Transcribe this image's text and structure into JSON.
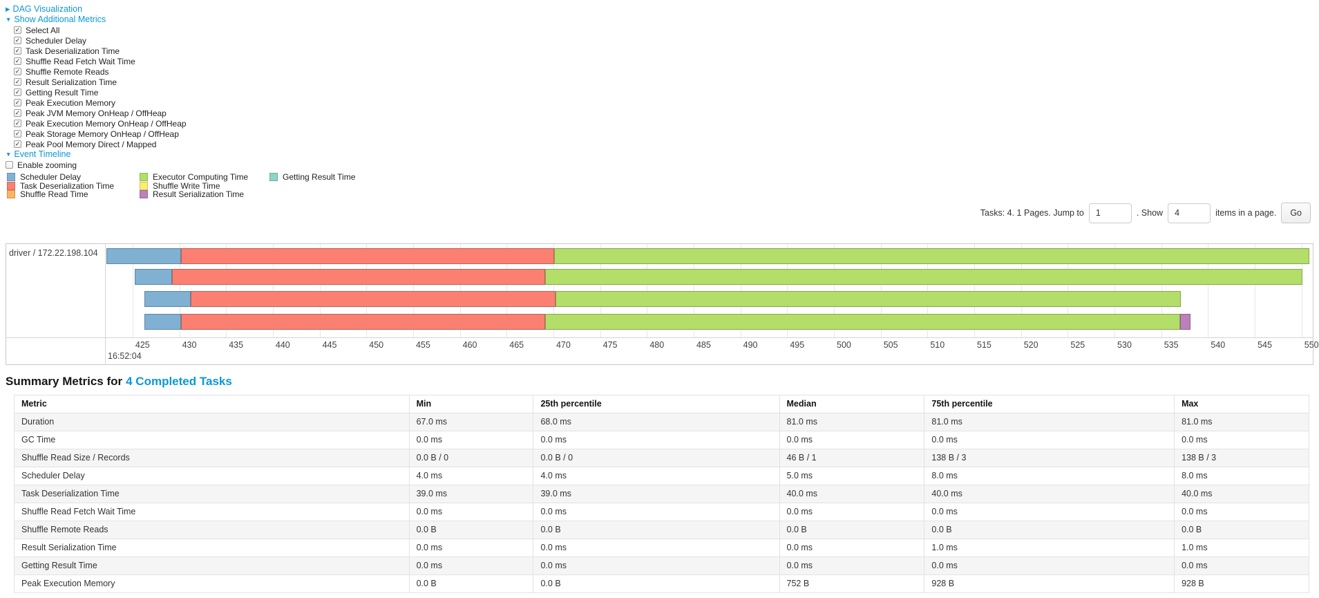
{
  "colors": {
    "link": "#0b98d6",
    "scheduler_delay": "#80B1D3",
    "task_deserialization": "#FB8072",
    "shuffle_read": "#FDB462",
    "executor_computing": "#B3DE69",
    "shuffle_write": "#FFED6F",
    "result_serialization": "#BC80BD",
    "getting_result": "#8DD3C7"
  },
  "icons": {
    "collapsed_arrow": "▶",
    "expanded_arrow": "▼",
    "check_mark": "✓"
  },
  "sections": {
    "dag_label": "DAG Visualization",
    "metrics_label": "Show Additional Metrics",
    "timeline_label": "Event Timeline"
  },
  "metrics_checkboxes": [
    {
      "label": "Select All",
      "checked": true
    },
    {
      "label": "Scheduler Delay",
      "checked": true
    },
    {
      "label": "Task Deserialization Time",
      "checked": true
    },
    {
      "label": "Shuffle Read Fetch Wait Time",
      "checked": true
    },
    {
      "label": "Shuffle Remote Reads",
      "checked": true
    },
    {
      "label": "Result Serialization Time",
      "checked": true
    },
    {
      "label": "Getting Result Time",
      "checked": true
    },
    {
      "label": "Peak Execution Memory",
      "checked": true
    },
    {
      "label": "Peak JVM Memory OnHeap / OffHeap",
      "checked": true
    },
    {
      "label": "Peak Execution Memory OnHeap / OffHeap",
      "checked": true
    },
    {
      "label": "Peak Storage Memory OnHeap / OffHeap",
      "checked": true
    },
    {
      "label": "Peak Pool Memory Direct / Mapped",
      "checked": true
    }
  ],
  "enable_zooming": {
    "label": "Enable zooming",
    "checked": false
  },
  "legend": {
    "columns": [
      [
        {
          "label": "Scheduler Delay",
          "key": "scheduler_delay"
        },
        {
          "label": "Task Deserialization Time",
          "key": "task_deserialization"
        },
        {
          "label": "Shuffle Read Time",
          "key": "shuffle_read"
        }
      ],
      [
        {
          "label": "Executor Computing Time",
          "key": "executor_computing"
        },
        {
          "label": "Shuffle Write Time",
          "key": "shuffle_write"
        },
        {
          "label": "Result Serialization Time",
          "key": "result_serialization"
        }
      ],
      [
        {
          "label": "Getting Result Time",
          "key": "getting_result"
        }
      ]
    ]
  },
  "pagination": {
    "tasks_text": "Tasks: 4. 1 Pages. Jump to",
    "jump_value": "1",
    "show_text": ". Show",
    "show_value": "4",
    "items_text": "items in a page.",
    "go_label": "Go"
  },
  "chart_data": {
    "type": "timeline",
    "row_label": "driver / 172.22.198.104",
    "axis": {
      "min": 422.2,
      "max": 551.2,
      "ticks": [
        425,
        430,
        435,
        440,
        445,
        450,
        455,
        460,
        465,
        470,
        475,
        480,
        485,
        490,
        495,
        500,
        505,
        510,
        515,
        520,
        525,
        530,
        535,
        540,
        545,
        550
      ],
      "time_label": "16:52:04"
    },
    "tasks": [
      {
        "segments": [
          {
            "key": "scheduler_delay",
            "start": 422.2,
            "end": 430.2
          },
          {
            "key": "task_deserialization",
            "start": 430.2,
            "end": 470.1
          },
          {
            "key": "executor_computing",
            "start": 470.1,
            "end": 550.8
          }
        ]
      },
      {
        "segments": [
          {
            "key": "scheduler_delay",
            "start": 425.2,
            "end": 429.2
          },
          {
            "key": "task_deserialization",
            "start": 429.2,
            "end": 469.1
          },
          {
            "key": "executor_computing",
            "start": 469.1,
            "end": 550.1
          }
        ]
      },
      {
        "segments": [
          {
            "key": "scheduler_delay",
            "start": 426.3,
            "end": 431.2
          },
          {
            "key": "task_deserialization",
            "start": 431.2,
            "end": 470.2
          },
          {
            "key": "executor_computing",
            "start": 470.2,
            "end": 537.1
          }
        ]
      },
      {
        "segments": [
          {
            "key": "scheduler_delay",
            "start": 426.3,
            "end": 430.2
          },
          {
            "key": "task_deserialization",
            "start": 430.2,
            "end": 469.1
          },
          {
            "key": "executor_computing",
            "start": 469.1,
            "end": 537.0
          },
          {
            "key": "result_serialization",
            "start": 537.0,
            "end": 538.1
          }
        ]
      }
    ]
  },
  "summary": {
    "title_prefix": "Summary Metrics for",
    "title_link": "4 Completed Tasks",
    "table": {
      "headers": [
        "Metric",
        "Min",
        "25th percentile",
        "Median",
        "75th percentile",
        "Max"
      ],
      "rows": [
        [
          "Duration",
          "67.0 ms",
          "68.0 ms",
          "81.0 ms",
          "81.0 ms",
          "81.0 ms"
        ],
        [
          "GC Time",
          "0.0 ms",
          "0.0 ms",
          "0.0 ms",
          "0.0 ms",
          "0.0 ms"
        ],
        [
          "Shuffle Read Size / Records",
          "0.0 B / 0",
          "0.0 B / 0",
          "46 B / 1",
          "138 B / 3",
          "138 B / 3"
        ],
        [
          "Scheduler Delay",
          "4.0 ms",
          "4.0 ms",
          "5.0 ms",
          "8.0 ms",
          "8.0 ms"
        ],
        [
          "Task Deserialization Time",
          "39.0 ms",
          "39.0 ms",
          "40.0 ms",
          "40.0 ms",
          "40.0 ms"
        ],
        [
          "Shuffle Read Fetch Wait Time",
          "0.0 ms",
          "0.0 ms",
          "0.0 ms",
          "0.0 ms",
          "0.0 ms"
        ],
        [
          "Shuffle Remote Reads",
          "0.0 B",
          "0.0 B",
          "0.0 B",
          "0.0 B",
          "0.0 B"
        ],
        [
          "Result Serialization Time",
          "0.0 ms",
          "0.0 ms",
          "0.0 ms",
          "1.0 ms",
          "1.0 ms"
        ],
        [
          "Getting Result Time",
          "0.0 ms",
          "0.0 ms",
          "0.0 ms",
          "0.0 ms",
          "0.0 ms"
        ],
        [
          "Peak Execution Memory",
          "0.0 B",
          "0.0 B",
          "752 B",
          "928 B",
          "928 B"
        ]
      ]
    }
  }
}
